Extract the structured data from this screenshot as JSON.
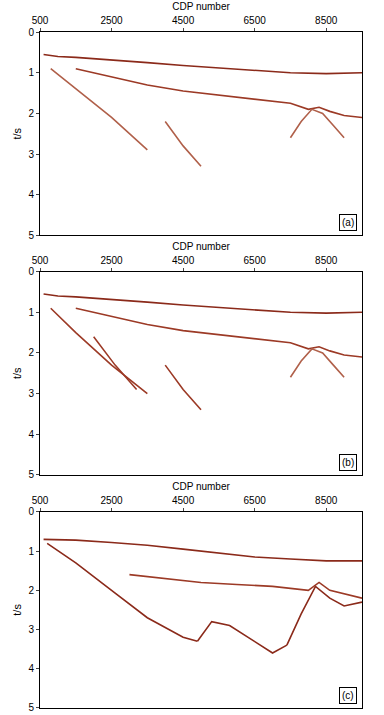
{
  "chart_data": [
    {
      "type": "line",
      "x_label": "CDP number",
      "y_label": "t/s",
      "annotation": "(a)",
      "xlim": [
        500,
        9500
      ],
      "xticks": [
        500,
        2500,
        4500,
        6500,
        8500
      ],
      "ylim": [
        5,
        0
      ],
      "yticks": [
        0,
        1,
        2,
        3,
        4,
        5
      ],
      "series": [
        {
          "color": "#8b2a1a",
          "x": [
            600,
            1000,
            1500,
            2500,
            3500,
            4500,
            5500,
            6500,
            7500,
            8500,
            9500
          ],
          "values": [
            0.55,
            0.6,
            0.62,
            0.68,
            0.75,
            0.82,
            0.88,
            0.95,
            1.0,
            1.02,
            1.0
          ]
        },
        {
          "color": "#9c3a26",
          "x": [
            1500,
            2500,
            3500,
            4500,
            5500,
            6500,
            7500,
            8000,
            8300,
            8600,
            9000,
            9500
          ],
          "values": [
            0.9,
            1.1,
            1.3,
            1.45,
            1.55,
            1.65,
            1.75,
            1.9,
            1.85,
            1.95,
            2.05,
            2.1
          ]
        },
        {
          "color": "#b0604a",
          "x": [
            7500,
            7800,
            8100,
            8400,
            8700,
            9000
          ],
          "values": [
            2.6,
            2.2,
            1.9,
            2.0,
            2.3,
            2.6
          ]
        },
        {
          "color": "#b0604a",
          "x": [
            800,
            1500,
            2500,
            3500
          ],
          "values": [
            0.9,
            1.4,
            2.1,
            2.9
          ]
        },
        {
          "color": "#b0604a",
          "x": [
            4000,
            4500,
            5000
          ],
          "values": [
            2.2,
            2.8,
            3.3
          ]
        }
      ]
    },
    {
      "type": "line",
      "x_label": "CDP number",
      "y_label": "t/s",
      "annotation": "(b)",
      "xlim": [
        500,
        9500
      ],
      "xticks": [
        500,
        2500,
        4500,
        6500,
        8500
      ],
      "ylim": [
        5,
        0
      ],
      "yticks": [
        0,
        1,
        2,
        3,
        4,
        5
      ],
      "series": [
        {
          "color": "#8b2a1a",
          "x": [
            600,
            1000,
            1500,
            2500,
            3500,
            4500,
            5500,
            6500,
            7500,
            8500,
            9500
          ],
          "values": [
            0.55,
            0.6,
            0.62,
            0.68,
            0.75,
            0.82,
            0.88,
            0.95,
            1.0,
            1.02,
            1.0
          ]
        },
        {
          "color": "#9c3a26",
          "x": [
            1500,
            2500,
            3500,
            4500,
            5500,
            6500,
            7500,
            8000,
            8300,
            8600,
            9000,
            9500
          ],
          "values": [
            0.9,
            1.1,
            1.3,
            1.45,
            1.55,
            1.65,
            1.75,
            1.9,
            1.85,
            1.95,
            2.05,
            2.1
          ]
        },
        {
          "color": "#b0604a",
          "x": [
            7500,
            7800,
            8100,
            8400,
            8700,
            9000
          ],
          "values": [
            2.6,
            2.2,
            1.9,
            2.0,
            2.3,
            2.6
          ]
        },
        {
          "color": "#9c3a26",
          "x": [
            800,
            1500,
            2500,
            3500
          ],
          "values": [
            0.9,
            1.5,
            2.3,
            3.0
          ]
        },
        {
          "color": "#9c3a26",
          "x": [
            2000,
            2600,
            3200
          ],
          "values": [
            1.6,
            2.3,
            2.9
          ]
        },
        {
          "color": "#9c3a26",
          "x": [
            4000,
            4500,
            5000
          ],
          "values": [
            2.3,
            2.9,
            3.4
          ]
        }
      ]
    },
    {
      "type": "line",
      "x_label": "CDP number",
      "y_label": "t/s",
      "annotation": "(c)",
      "xlim": [
        500,
        9500
      ],
      "xticks": [
        500,
        2500,
        4500,
        6500,
        8500
      ],
      "ylim": [
        5,
        0
      ],
      "yticks": [
        0,
        1,
        2,
        3,
        4,
        5
      ],
      "series": [
        {
          "color": "#8b2a1a",
          "x": [
            600,
            1500,
            2500,
            3500,
            4500,
            5500,
            6500,
            7500,
            8500,
            9500
          ],
          "values": [
            0.7,
            0.72,
            0.78,
            0.85,
            0.95,
            1.05,
            1.15,
            1.2,
            1.25,
            1.25
          ]
        },
        {
          "color": "#8b2a1a",
          "x": [
            700,
            1500,
            2500,
            3500,
            4500,
            4900
          ],
          "values": [
            0.8,
            1.3,
            2.0,
            2.7,
            3.2,
            3.3
          ]
        },
        {
          "color": "#8b2a1a",
          "x": [
            4900,
            5300,
            5800,
            6500,
            7000,
            7400
          ],
          "values": [
            3.3,
            2.8,
            2.9,
            3.3,
            3.6,
            3.4
          ]
        },
        {
          "color": "#8b2a1a",
          "x": [
            7400,
            7800,
            8200,
            8600,
            9000,
            9500
          ],
          "values": [
            3.4,
            2.6,
            1.9,
            2.2,
            2.4,
            2.3
          ]
        },
        {
          "color": "#9c3a26",
          "x": [
            3000,
            4000,
            5000,
            6000,
            7000,
            8000,
            8300,
            8600,
            9500
          ],
          "values": [
            1.6,
            1.7,
            1.8,
            1.85,
            1.9,
            2.0,
            1.8,
            2.0,
            2.2
          ]
        }
      ]
    }
  ]
}
